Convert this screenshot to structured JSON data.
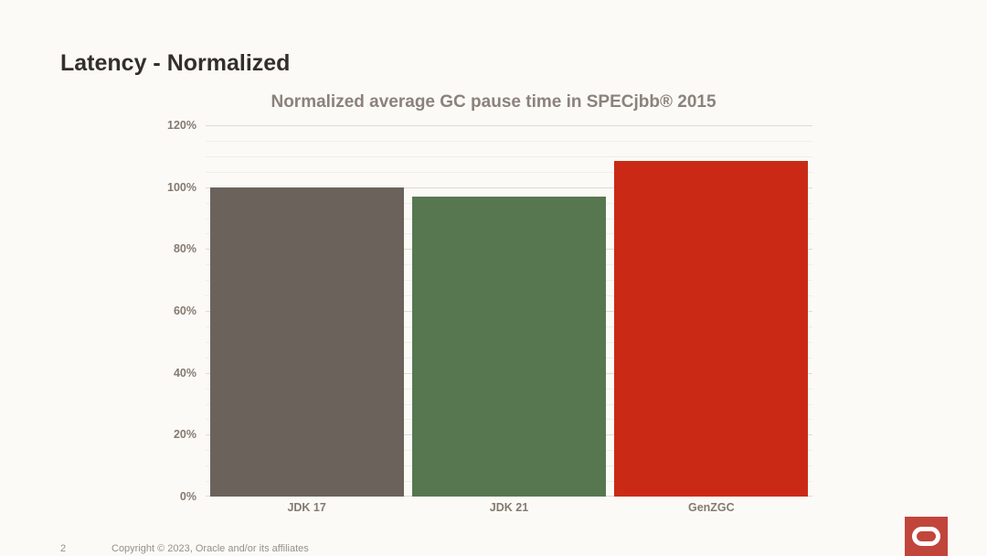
{
  "slide": {
    "title": "Latency - Normalized",
    "page_number": "2",
    "footer": "Copyright © 2023, Oracle and/or its affiliates",
    "background_color": "#FBFAF7",
    "title_color": "#332F2B"
  },
  "chart_data": {
    "type": "bar",
    "title": "Normalized average GC pause time in SPECjbb® 2015",
    "categories": [
      "JDK 17",
      "JDK 21",
      "GenZGC"
    ],
    "values": [
      100,
      97,
      108.5
    ],
    "unit": "%",
    "xlabel": "",
    "ylabel": "",
    "ylim": [
      0,
      120
    ],
    "ytick_step": 20,
    "minor_grid_step": 5,
    "ytick_labels": [
      "0%",
      "20%",
      "40%",
      "60%",
      "80%",
      "100%",
      "120%"
    ],
    "grid": true,
    "legend_position": "none",
    "bar_colors": [
      "#6A625B",
      "#577750",
      "#CA2A15"
    ],
    "title_color": "#8B827B",
    "axis_label_color": "#857A6F"
  },
  "logo": {
    "icon": "oracle-logo-icon",
    "background_color": "#C1453A",
    "mark_color": "#FFFFFF"
  }
}
